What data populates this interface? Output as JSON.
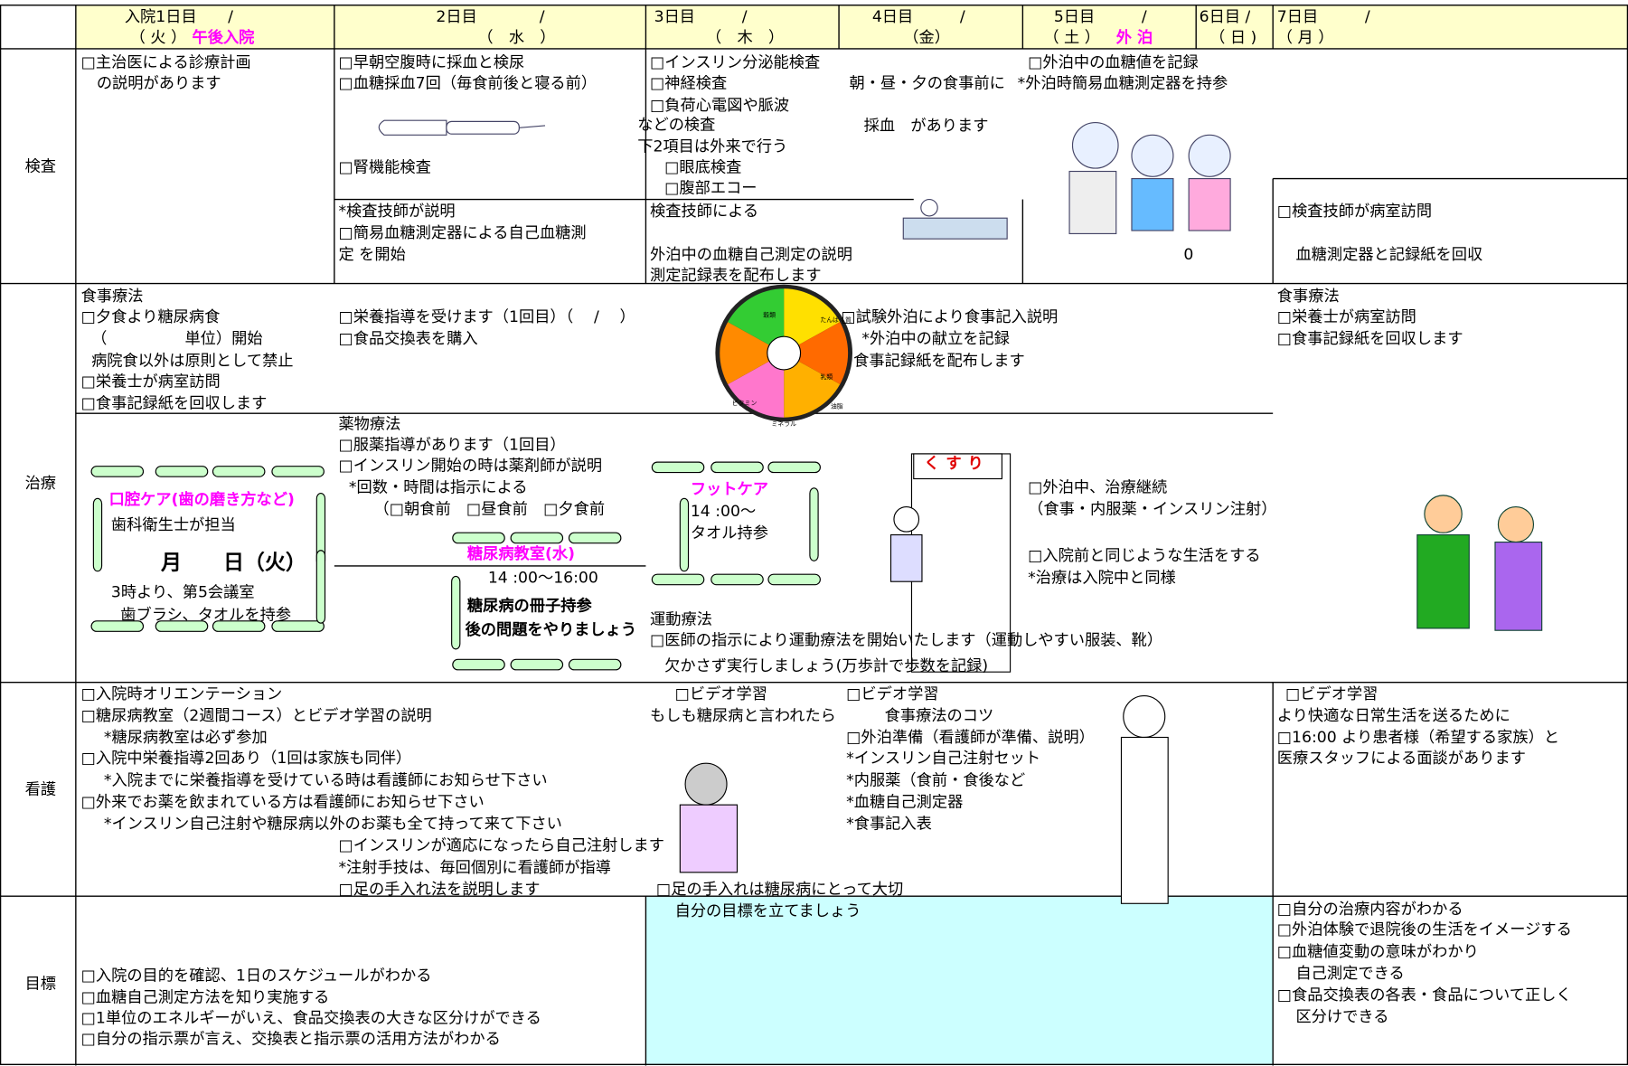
{
  "header": {
    "columns": [
      {
        "day": "入院1日目　　/",
        "weekday": "（ 火 ）",
        "note": "午後入院"
      },
      {
        "day": "2日目　　　　/",
        "weekday": "（　水　）"
      },
      {
        "day": "3日目　　　/",
        "weekday": "（　木　）"
      },
      {
        "day": "4日目　　　/",
        "weekday": "（金）"
      },
      {
        "day": "5日目　　　/",
        "weekday": "（ 土 ）",
        "note": "外 泊"
      },
      {
        "day": "6日目 /",
        "weekday": "（ 日 )"
      },
      {
        "day": "7日目　　　/",
        "weekday": "（ 月 ）"
      }
    ]
  },
  "rows": [
    {
      "label": "検査",
      "items": [
        "□主治医による診療計画",
        "　の説明があります",
        "□早朝空腹時に採血と検尿",
        "□血糖採血7回（毎食前後と寝る前）",
        "□腎機能検査",
        "*検査技師が説明",
        "□簡易血糖測定器による自己血糖測",
        "定 を開始",
        "□インスリン分泌能検査",
        "□神経検査",
        "□負荷心電図や脈波",
        "などの検査",
        "下2項目は外来で行う",
        "□眼底検査",
        "□腹部エコー",
        "検査技師による",
        "外泊中の血糖自己測定の説明",
        "測定記録表を配布します",
        "朝・昼・夕の食事前に",
        "採血　があります",
        "□外泊中の血糖値を記録",
        "*外泊時簡易血糖測定器を持参",
        "0",
        "□検査技師が病室訪問",
        "血糖測定器と記録紙を回収"
      ]
    },
    {
      "label": "治療",
      "items": [
        "食事療法",
        "□夕食より糖尿病食",
        "（　　　　　単位）開始",
        "病院食以外は原則として禁止",
        "□栄養士が病室訪問",
        "□食事記録紙を回収します",
        "□栄養指導を受けます（1回目）（　 /　 ）",
        "□食品交換表を購入",
        "□試験外泊により食事記入説明",
        "*外泊中の献立を記録",
        "食事記録紙を配布します",
        "食事療法",
        "□栄養士が病室訪問",
        "□食事記録紙を回収します",
        "薬物療法",
        "□服薬指導があります（1回目）",
        "□インスリン開始の時は薬剤師が説明",
        "*回数・時間は指示による",
        "（□朝食前　□昼食前　□夕食前",
        "口腔ケア(歯の磨き方など)",
        "歯科衛生士が担当",
        "月　　日（火）",
        "3時より、第5会議室",
        "歯ブラシ、タオルを持参",
        "糖尿病教室(水)",
        "14 :00〜16:00",
        "糖尿病の冊子持参",
        "後の問題をやりましょう",
        "フットケア",
        "14 :00〜",
        "タオル持参",
        "くすり",
        "□外泊中、治療継続",
        "（食事・内服薬・インスリン注射）",
        "□入院前と同じような生活をする",
        "*治療は入院中と同様",
        "運動療法",
        "□医師の指示により運動療法を開始いたします（運動しやすい服装、靴）",
        "欠かさず実行しましょう(万歩計で歩数を記録)"
      ]
    },
    {
      "label": "看護",
      "items": [
        "□入院時オリエンテーション",
        "□糖尿病教室（2週間コース）とビデオ学習の説明",
        "*糖尿病教室は必ず参加",
        "□入院中栄養指導2回あり（1回は家族も同伴）",
        "*入院までに栄養指導を受けている時は看護師にお知らせ下さい",
        "□外来でお薬を飲まれている方は看護師にお知らせ下さい",
        "*インスリン自己注射や糖尿病以外のお薬も全て持って来て下さい",
        "□インスリンが適応になったら自己注射します",
        "*注射手技は、毎回個別に看護師が指導",
        "□足の手入れ法を説明します",
        "□ビデオ学習",
        "もしも糖尿病と言われたら",
        "□ビデオ学習",
        "食事療法のコツ",
        "□外泊準備（看護師が準備、説明）",
        "*インスリン自己注射セット",
        "*内服薬（食前・食後など",
        "*血糖自己測定器",
        "*食事記入表",
        "□足の手入れは糖尿病にとって大切",
        "□ビデオ学習",
        "より快適な日常生活を送るために",
        "□16:00 より患者様（希望する家族）と",
        "医療スタッフによる面談があります"
      ]
    },
    {
      "label": "目標",
      "items": [
        "自分の目標を立てましょう",
        "□入院の目的を確認、1日のスケジュールがわかる",
        "□血糖自己測定方法を知り実施する",
        "□1単位のエネルギーがいえ、食品交換表の大きな区分けができる",
        "□自分の指示票が言え、交換表と指示票の活用方法がわかる",
        "□自分の治療内容がわかる",
        "□外泊体験で退院後の生活をイメージする",
        "□血糖値変動の意味がわかり",
        "自己測定できる",
        "□食品交換表の各表・食品について正しく",
        "区分けできる"
      ]
    }
  ],
  "plate_labels": [
    "穀類",
    "たんぱく質",
    "油脂",
    "乳類",
    "ミネラル",
    "ビタミン"
  ]
}
